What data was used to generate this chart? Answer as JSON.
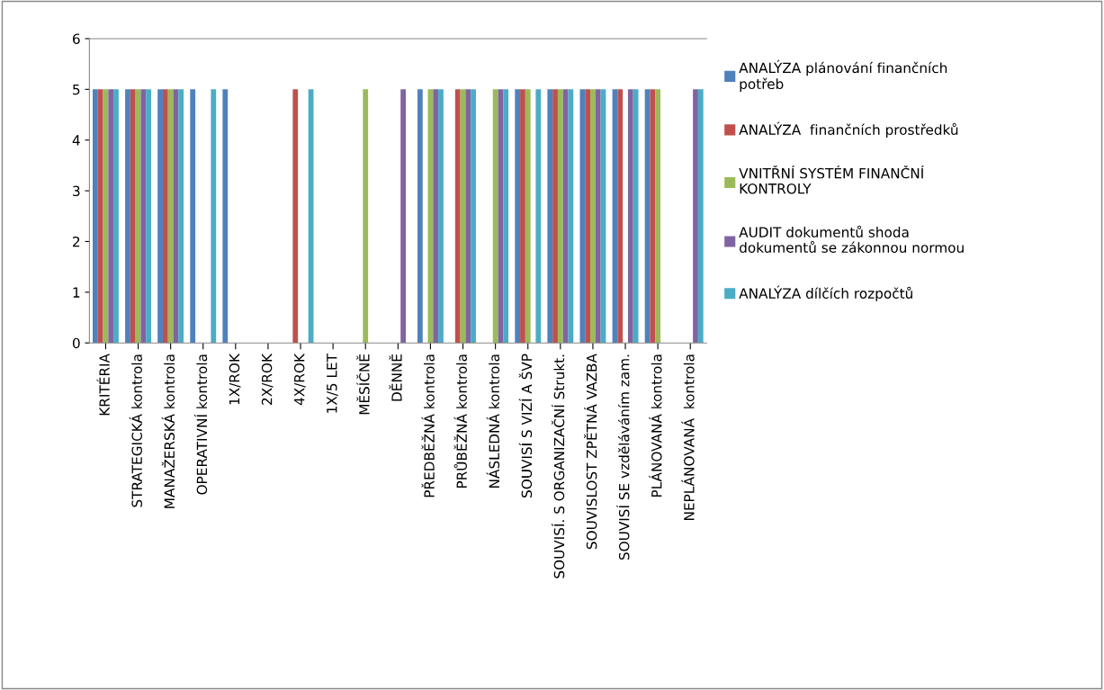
{
  "chart_data": {
    "type": "bar",
    "categories": [
      "KRITÉRIA",
      "STRATEGICKÁ kontrola",
      "MANAŽERSKÁ kontrola",
      "OPERATIVNÍ kontrola",
      "1X/ROK",
      "2X/ROK",
      "4X/ROK",
      "1X/5 LET",
      "MĚSÍČNĚ",
      "DĚNNĚ",
      "PŘEDBĚŽNÁ kontrola",
      "PRŮBĚŽNÁ kontrola",
      "NÁSLEDNÁ kontrola",
      "SOUVISÍ S VIZÍ A ŠVP",
      "SOUVISÍ. S ORGANIZAČNÍ Strukt.",
      "SOUVISLOST ZPĚTNÁ VAZBA",
      "SOUVISÍ SE vzděláváním zam.",
      "PLÁNOVANÁ kontrola",
      "NEPLÁNOVANÁ  kontrola"
    ],
    "series": [
      {
        "name": "ANALÝZA plánování finančních\npotřeb",
        "color": "#4f81bd",
        "values": [
          5,
          5,
          5,
          5,
          5,
          0,
          0,
          0,
          0,
          0,
          5,
          0,
          0,
          5,
          5,
          5,
          5,
          5,
          0
        ]
      },
      {
        "name": "ANALÝZA  finančních prostředků",
        "color": "#c0504d",
        "values": [
          5,
          5,
          5,
          0,
          0,
          0,
          5,
          0,
          0,
          0,
          0,
          5,
          0,
          5,
          5,
          5,
          5,
          5,
          0
        ]
      },
      {
        "name": "VNITŘNÍ SYSTÉM FINANČNÍ\nKONTROLY",
        "color": "#9bbb59",
        "values": [
          5,
          5,
          5,
          0,
          0,
          0,
          0,
          0,
          5,
          0,
          5,
          5,
          5,
          5,
          5,
          5,
          0,
          5,
          0
        ]
      },
      {
        "name": "AUDIT dokumentů shoda\ndokumentů se zákonnou normou",
        "color": "#8064a2",
        "values": [
          5,
          5,
          5,
          0,
          0,
          0,
          0,
          0,
          0,
          5,
          5,
          5,
          5,
          0,
          5,
          5,
          5,
          0,
          5
        ]
      },
      {
        "name": "ANALÝZA dílčích rozpočtů",
        "color": "#4bacc6",
        "values": [
          5,
          5,
          5,
          5,
          0,
          0,
          5,
          0,
          0,
          0,
          5,
          5,
          5,
          5,
          5,
          5,
          5,
          0,
          5
        ]
      }
    ],
    "ylim": [
      0,
      6
    ],
    "yticks": [
      0,
      1,
      2,
      3,
      4,
      5,
      6
    ],
    "grid": false,
    "legend": "right"
  }
}
